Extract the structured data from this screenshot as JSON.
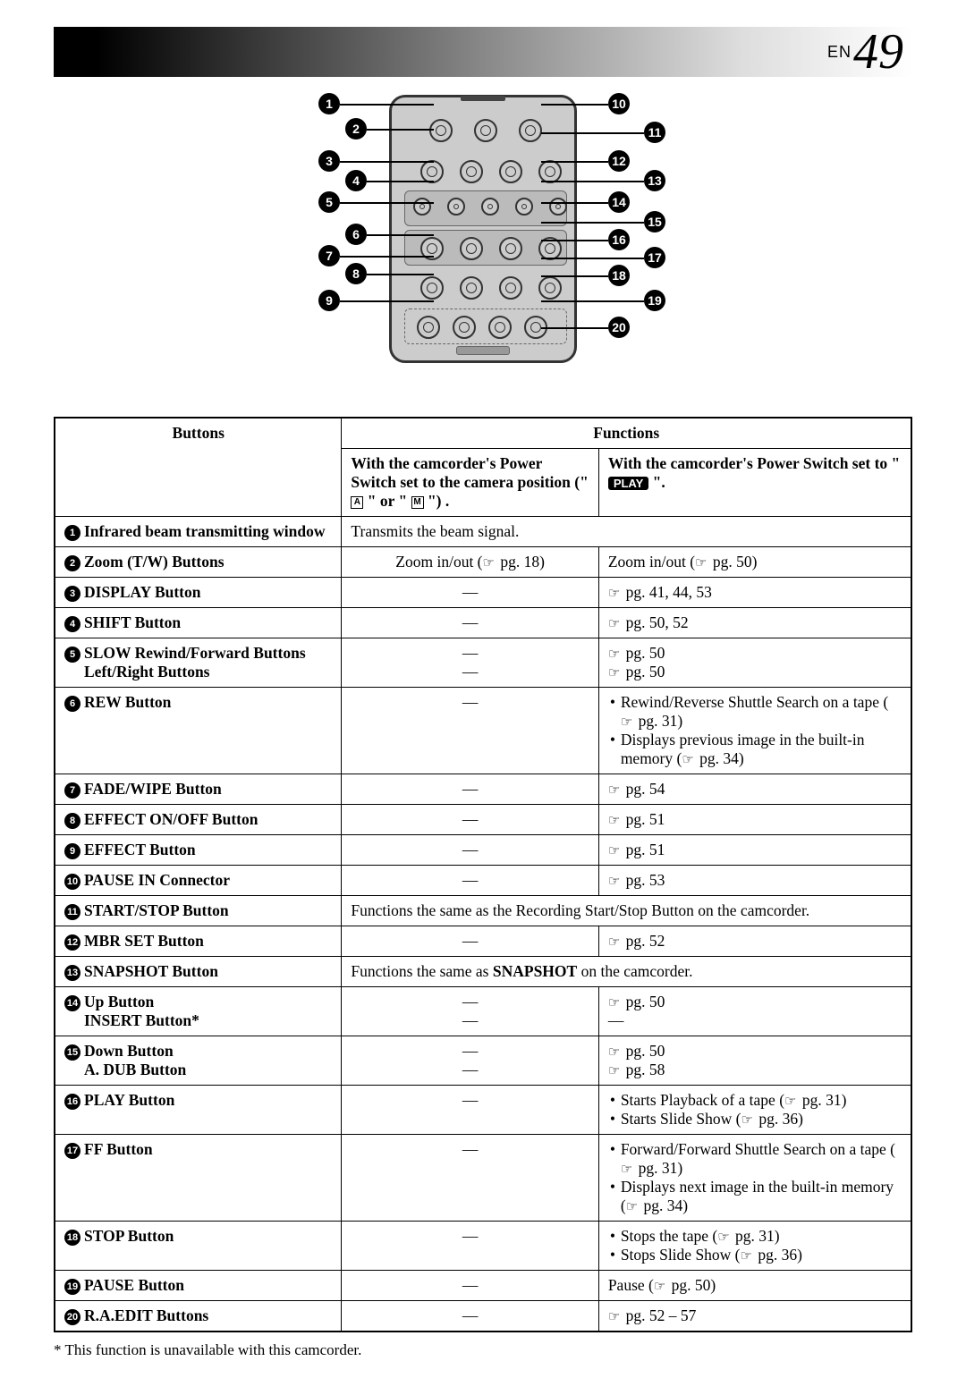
{
  "header": {
    "en": "EN",
    "page": "49"
  },
  "diagram": {
    "remote": {
      "border_radius": 18,
      "bg": "#cccccc",
      "border": "#333333"
    },
    "left_callouts": [
      1,
      2,
      3,
      4,
      5,
      6,
      7,
      8,
      9
    ],
    "right_callouts": [
      10,
      11,
      12,
      13,
      14,
      15,
      16,
      17,
      18,
      19,
      20
    ]
  },
  "table": {
    "head": {
      "buttons": "Buttons",
      "functions": "Functions",
      "camera": "With the camcorder's Power Switch set to the camera position (\" ",
      "camera_sym1": "A",
      "camera_mid": " \" or \" ",
      "camera_sym2": "M",
      "camera_end": " \") .",
      "play": "With the camcorder's Power Switch set to \" ",
      "play_pill": "PLAY",
      "play_end": " \"."
    },
    "rows": [
      {
        "n": 1,
        "label": "Infrared beam transmitting window",
        "merged": "Transmits the beam signal."
      },
      {
        "n": 2,
        "label": "Zoom (T/W) Buttons",
        "cam": "Zoom in/out (☞ pg. 18)",
        "play": "Zoom in/out (☞ pg. 50)"
      },
      {
        "n": 3,
        "label": "DISPLAY Button",
        "cam": "—",
        "play": "☞ pg. 41, 44, 53"
      },
      {
        "n": 4,
        "label": "SHIFT Button",
        "cam": "—",
        "play": "☞ pg. 50, 52"
      },
      {
        "n": 5,
        "labels": [
          "SLOW Rewind/Forward Buttons",
          "Left/Right Buttons"
        ],
        "cams": [
          "—",
          "—"
        ],
        "plays": [
          "☞ pg. 50",
          "☞ pg. 50"
        ]
      },
      {
        "n": 6,
        "label": "REW Button",
        "cam": "—",
        "play_bullets": [
          "Rewind/Reverse Shuttle Search on a tape (☞ pg. 31)",
          "Displays previous image in the built-in memory (☞ pg. 34)"
        ]
      },
      {
        "n": 7,
        "label": "FADE/WIPE Button",
        "cam": "—",
        "play": "☞ pg. 54"
      },
      {
        "n": 8,
        "label": "EFFECT ON/OFF Button",
        "cam": "—",
        "play": "☞ pg. 51"
      },
      {
        "n": 9,
        "label": "EFFECT Button",
        "cam": "—",
        "play": "☞ pg. 51"
      },
      {
        "n": 10,
        "label": "PAUSE IN Connector",
        "cam": "—",
        "play": "☞ pg. 53"
      },
      {
        "n": 11,
        "label": "START/STOP Button",
        "merged": "Functions the same as the Recording Start/Stop Button on the camcorder."
      },
      {
        "n": 12,
        "label": "MBR SET Button",
        "cam": "—",
        "play": "☞ pg. 52"
      },
      {
        "n": 13,
        "label": "SNAPSHOT Button",
        "merged_html": "Functions the same as <b>SNAPSHOT</b> on the camcorder."
      },
      {
        "n": 14,
        "labels": [
          "Up Button",
          "INSERT Button*"
        ],
        "cams": [
          "—",
          "—"
        ],
        "plays": [
          "☞ pg. 50",
          "—"
        ]
      },
      {
        "n": 15,
        "labels": [
          "Down Button",
          "A. DUB Button"
        ],
        "cams": [
          "—",
          "—"
        ],
        "plays": [
          "☞ pg. 50",
          "☞ pg. 58"
        ]
      },
      {
        "n": 16,
        "label": "PLAY Button",
        "cam": "—",
        "play_bullets": [
          "Starts Playback of a tape (☞ pg. 31)",
          "Starts Slide Show (☞ pg. 36)"
        ]
      },
      {
        "n": 17,
        "label": "FF Button",
        "cam": "—",
        "play_bullets": [
          "Forward/Forward Shuttle Search on a tape (☞ pg. 31)",
          "Displays next image in the built-in memory (☞ pg. 34)"
        ]
      },
      {
        "n": 18,
        "label": "STOP Button",
        "cam": "—",
        "play_bullets": [
          "Stops the tape (☞ pg. 31)",
          "Stops Slide Show (☞ pg. 36)"
        ]
      },
      {
        "n": 19,
        "label": "PAUSE Button",
        "cam": "—",
        "play": "Pause (☞ pg. 50)"
      },
      {
        "n": 20,
        "label": "R.A.EDIT Buttons",
        "cam": "—",
        "play": "☞ pg. 52 – 57"
      }
    ]
  },
  "footnote": "* This function is unavailable with this camcorder."
}
